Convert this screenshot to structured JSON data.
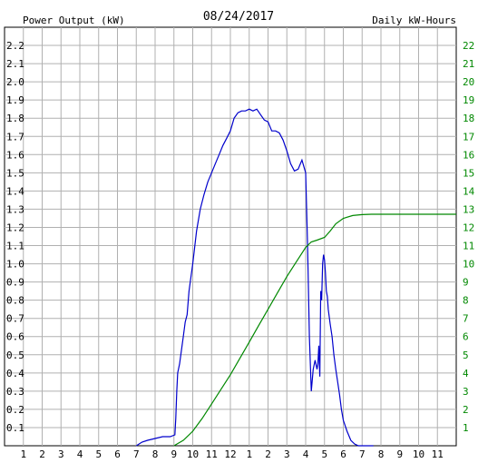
{
  "chart_data": {
    "type": "line",
    "title": "08/24/2017",
    "left_axis_label": "Power Output (kW)",
    "right_axis_label": "Daily kW-Hours",
    "left_ylim": [
      0,
      2.3
    ],
    "right_ylim": [
      0,
      23
    ],
    "left_ticks": [
      "0.1",
      "0.2",
      "0.3",
      "0.4",
      "0.5",
      "0.6",
      "0.7",
      "0.8",
      "0.9",
      "1.0",
      "1.1",
      "1.2",
      "1.3",
      "1.4",
      "1.5",
      "1.6",
      "1.7",
      "1.8",
      "1.9",
      "2.0",
      "2.1",
      "2.2"
    ],
    "right_ticks": [
      "1",
      "2",
      "3",
      "4",
      "5",
      "6",
      "7",
      "8",
      "9",
      "10",
      "11",
      "12",
      "13",
      "14",
      "15",
      "16",
      "17",
      "18",
      "19",
      "20",
      "21",
      "22"
    ],
    "x_ticks": [
      "1",
      "2",
      "3",
      "4",
      "5",
      "6",
      "7",
      "8",
      "9",
      "10",
      "11",
      "12",
      "1",
      "2",
      "3",
      "4",
      "5",
      "6",
      "7",
      "8",
      "9",
      "10",
      "11"
    ],
    "xlim_hours": [
      0,
      24
    ],
    "grid": true,
    "colors": {
      "power": "#0000cc",
      "energy": "#008800",
      "grid": "#b0b0b0",
      "left_label": "#0000cc",
      "right_label": "#008800"
    },
    "series": [
      {
        "axis": "left",
        "x_hours": [
          7.0,
          7.3,
          7.6,
          8.0,
          8.4,
          8.8,
          9.05,
          9.1,
          9.15,
          9.2,
          9.3,
          9.5,
          9.6,
          9.7,
          9.8,
          10.0,
          10.2,
          10.4,
          10.6,
          10.8,
          11.0,
          11.2,
          11.4,
          11.6,
          11.8,
          12.0,
          12.2,
          12.4,
          12.6,
          12.8,
          13.0,
          13.2,
          13.4,
          13.6,
          13.8,
          14.0,
          14.2,
          14.4,
          14.6,
          14.8,
          15.0,
          15.2,
          15.4,
          15.6,
          15.8,
          16.0,
          16.1,
          16.2,
          16.3,
          16.4,
          16.5,
          16.6,
          16.65,
          16.7,
          16.75,
          16.8,
          16.85,
          16.9,
          16.95,
          17.0,
          17.05,
          17.1,
          17.15,
          17.2,
          17.3,
          17.4,
          17.45,
          17.5,
          17.6,
          17.7,
          17.8,
          17.9,
          18.0,
          18.2,
          18.4,
          18.6,
          18.8,
          19.0,
          19.2,
          19.4,
          19.6
        ],
        "y": [
          0.0,
          0.02,
          0.03,
          0.04,
          0.05,
          0.05,
          0.06,
          0.15,
          0.3,
          0.4,
          0.45,
          0.6,
          0.68,
          0.72,
          0.85,
          1.0,
          1.18,
          1.3,
          1.38,
          1.45,
          1.5,
          1.55,
          1.6,
          1.65,
          1.69,
          1.73,
          1.8,
          1.83,
          1.84,
          1.84,
          1.85,
          1.84,
          1.85,
          1.82,
          1.79,
          1.78,
          1.73,
          1.73,
          1.72,
          1.68,
          1.62,
          1.55,
          1.51,
          1.52,
          1.57,
          1.5,
          1.1,
          0.6,
          0.3,
          0.42,
          0.47,
          0.42,
          0.45,
          0.55,
          0.38,
          0.85,
          0.8,
          1.0,
          1.05,
          1.02,
          0.95,
          0.85,
          0.82,
          0.75,
          0.67,
          0.6,
          0.55,
          0.5,
          0.42,
          0.35,
          0.28,
          0.2,
          0.14,
          0.08,
          0.03,
          0.01,
          0.0,
          0.0,
          0.0,
          0.0,
          0.0
        ]
      },
      {
        "axis": "right",
        "x_hours": [
          9.0,
          9.5,
          10.0,
          10.5,
          11.0,
          11.5,
          12.0,
          12.5,
          13.0,
          13.5,
          14.0,
          14.5,
          15.0,
          15.5,
          16.0,
          16.3,
          16.6,
          17.0,
          17.3,
          17.6,
          18.0,
          18.5,
          19.0,
          19.5,
          20.0,
          21.0,
          22.0,
          23.0,
          24.0
        ],
        "y": [
          0.0,
          0.3,
          0.8,
          1.5,
          2.3,
          3.1,
          3.9,
          4.8,
          5.7,
          6.6,
          7.5,
          8.4,
          9.3,
          10.1,
          10.9,
          11.2,
          11.3,
          11.45,
          11.8,
          12.2,
          12.5,
          12.65,
          12.7,
          12.72,
          12.72,
          12.72,
          12.72,
          12.72,
          12.72
        ]
      }
    ]
  }
}
